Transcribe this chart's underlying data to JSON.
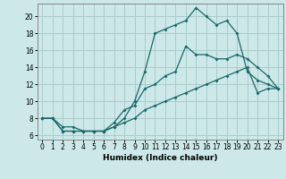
{
  "title": "",
  "xlabel": "Humidex (Indice chaleur)",
  "bg_color": "#cce8e8",
  "grid_color": "#aacccc",
  "line_color": "#1a6868",
  "xlim": [
    -0.5,
    23.5
  ],
  "ylim": [
    5.5,
    21.5
  ],
  "xticks": [
    0,
    1,
    2,
    3,
    4,
    5,
    6,
    7,
    8,
    9,
    10,
    11,
    12,
    13,
    14,
    15,
    16,
    17,
    18,
    19,
    20,
    21,
    22,
    23
  ],
  "yticks": [
    6,
    8,
    10,
    12,
    14,
    16,
    18,
    20
  ],
  "line1_x": [
    0,
    1,
    2,
    3,
    4,
    5,
    6,
    7,
    8,
    9,
    10,
    11,
    12,
    13,
    14,
    15,
    16,
    17,
    18,
    19,
    20,
    21,
    22,
    23
  ],
  "line1_y": [
    8,
    8,
    7,
    7,
    6.5,
    6.5,
    6.5,
    7,
    8,
    10,
    13.5,
    18,
    18.5,
    19,
    19.5,
    21,
    20,
    19,
    19.5,
    18,
    13.5,
    12.5,
    12,
    11.5
  ],
  "line2_x": [
    0,
    1,
    2,
    3,
    4,
    5,
    6,
    7,
    8,
    9,
    10,
    11,
    12,
    13,
    14,
    15,
    16,
    17,
    18,
    19,
    20,
    21,
    22,
    23
  ],
  "line2_y": [
    8,
    8,
    6.5,
    6.5,
    6.5,
    6.5,
    6.5,
    7.5,
    9,
    9.5,
    11.5,
    12,
    13,
    13.5,
    16.5,
    15.5,
    15.5,
    15,
    15,
    15.5,
    15,
    14,
    13,
    11.5
  ],
  "line3_x": [
    0,
    1,
    2,
    3,
    4,
    5,
    6,
    7,
    8,
    9,
    10,
    11,
    12,
    13,
    14,
    15,
    16,
    17,
    18,
    19,
    20,
    21,
    22,
    23
  ],
  "line3_y": [
    8,
    8,
    6.5,
    6.5,
    6.5,
    6.5,
    6.5,
    7,
    7.5,
    8,
    9,
    9.5,
    10,
    10.5,
    11,
    11.5,
    12,
    12.5,
    13,
    13.5,
    14,
    11,
    11.5,
    11.5
  ]
}
